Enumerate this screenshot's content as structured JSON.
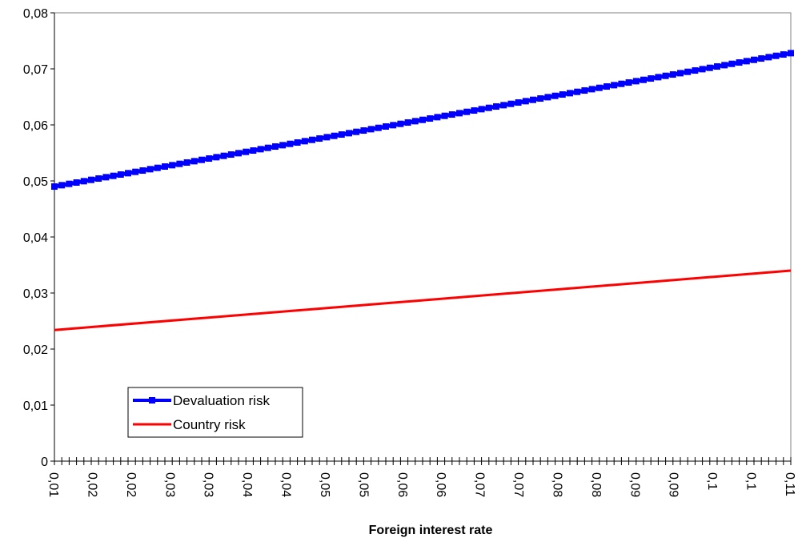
{
  "chart_data": {
    "type": "line",
    "title": "",
    "xlabel": "Foreign interest rate",
    "ylabel": "",
    "ylim": [
      0,
      0.08
    ],
    "yticks": [
      "0",
      "0,01",
      "0,02",
      "0,03",
      "0,04",
      "0,05",
      "0,06",
      "0,07",
      "0,08"
    ],
    "xticks": [
      "0,01",
      "0,02",
      "0,02",
      "0,03",
      "0,03",
      "0,04",
      "0,04",
      "0,05",
      "0,05",
      "0,06",
      "0,06",
      "0,07",
      "0,07",
      "0,08",
      "0,08",
      "0,09",
      "0,09",
      "0,1",
      "0,1",
      "0,11"
    ],
    "x_range": [
      0.01,
      0.11
    ],
    "legend_position": "bottom-left",
    "grid": false,
    "series": [
      {
        "name": "Devaluation risk",
        "color": "#0000ff",
        "marker": "square",
        "start": 0.049,
        "end": 0.0728
      },
      {
        "name": "Country risk",
        "color": "#ff0000",
        "marker": "none",
        "start": 0.0234,
        "end": 0.034
      }
    ]
  }
}
